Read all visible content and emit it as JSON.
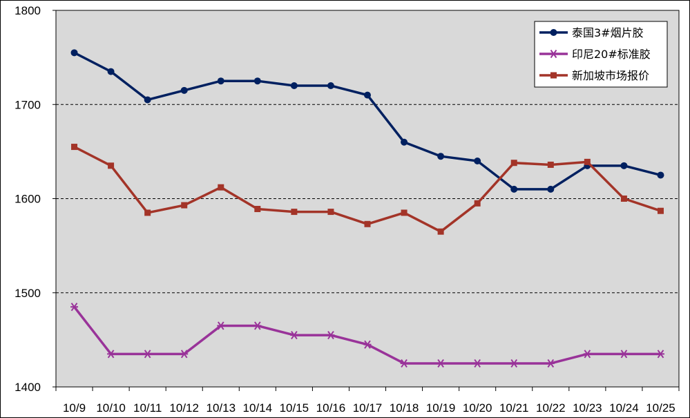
{
  "chart_data": {
    "type": "line",
    "categories": [
      "10/9",
      "10/10",
      "10/11",
      "10/12",
      "10/13",
      "10/14",
      "10/15",
      "10/16",
      "10/17",
      "10/18",
      "10/19",
      "10/20",
      "10/21",
      "10/22",
      "10/23",
      "10/24",
      "10/25"
    ],
    "ylim": [
      1400,
      1800
    ],
    "yticks": [
      1400,
      1500,
      1600,
      1700,
      1800
    ],
    "grid": "horizontal dashed",
    "legend_position": "top-right",
    "plot_background": "#d9d9d9",
    "series": [
      {
        "name": "泰国3#烟片胶",
        "color": "#002060",
        "marker": "circle",
        "values": [
          1755,
          1735,
          1705,
          1715,
          1725,
          1725,
          1720,
          1720,
          1710,
          1660,
          1645,
          1640,
          1610,
          1610,
          1635,
          1635,
          1625
        ]
      },
      {
        "name": "印尼20#标准胶",
        "color": "#993399",
        "marker": "asterisk",
        "values": [
          1485,
          1435,
          1435,
          1435,
          1465,
          1465,
          1455,
          1455,
          1445,
          1425,
          1425,
          1425,
          1425,
          1425,
          1435,
          1435,
          1435
        ]
      },
      {
        "name": "新加坡市场报价",
        "color": "#a33428",
        "marker": "square",
        "values": [
          1655,
          1635,
          1585,
          1593,
          1612,
          1589,
          1586,
          1586,
          1573,
          1585,
          1565,
          1595,
          1638,
          1636,
          1639,
          1600,
          1587
        ]
      }
    ]
  }
}
